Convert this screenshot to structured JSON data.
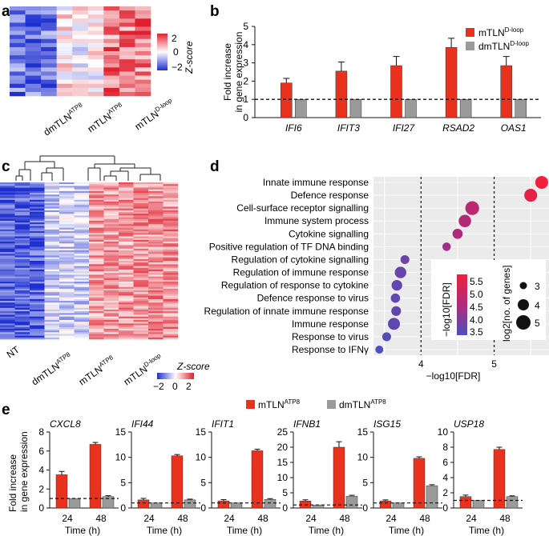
{
  "colors": {
    "mtln_atp8": "#e8321e",
    "dmtln_atp8": "#9a9a9a",
    "mtln_dloop": "#e8321e",
    "dmtln_dloop": "#9a9a9a",
    "z_low": "#1e2fd0",
    "z_mid": "#ffffff",
    "z_high": "#e0202e",
    "fdr_low": "#4b4fbe",
    "fdr_high": "#f0203c",
    "panel_d_bg": "#ebebeb"
  },
  "panels": {
    "a": {
      "label": "a",
      "colorbar": {
        "title": "Z-score",
        "ticks": [
          "2",
          "0",
          "−2"
        ]
      },
      "columns": [
        {
          "base": "dmTLN",
          "sup": "ATP8"
        },
        {
          "base": "mTLN",
          "sup": "ATP8"
        },
        {
          "base": "mTLN",
          "sup": "D-loop"
        }
      ]
    },
    "b": {
      "label": "b"
    },
    "c": {
      "label": "c",
      "columns": [
        {
          "base": "NT",
          "sup": ""
        },
        {
          "base": "dmTLN",
          "sup": "ATP8"
        },
        {
          "base": "mTLN",
          "sup": "ATP8"
        },
        {
          "base": "mTLN",
          "sup": "D-loop"
        }
      ],
      "colorbar": {
        "title": "Z-score",
        "ticks": [
          "−2",
          "0",
          "2"
        ]
      }
    },
    "d": {
      "label": "d"
    },
    "e": {
      "label": "e"
    }
  },
  "chart_data": [
    {
      "id": "b",
      "type": "bar",
      "ylabel_lines": [
        "Fold increase",
        "in gene expression"
      ],
      "ylim": [
        0,
        5
      ],
      "yticks": [
        "0",
        "1",
        "2",
        "3",
        "4",
        "5"
      ],
      "categories": [
        "IFI6",
        "IFIT3",
        "IFI27",
        "RSAD2",
        "OAS1"
      ],
      "reference_line": 1,
      "legend": {
        "position": "top-right"
      },
      "series": [
        {
          "name": "mTLN",
          "name_sup": "D-loop",
          "color": "#e8321e",
          "values": [
            1.9,
            2.55,
            2.85,
            3.85,
            2.85
          ],
          "errors": [
            0.25,
            0.5,
            0.5,
            0.5,
            0.5
          ]
        },
        {
          "name": "dmTLN",
          "name_sup": "D-loop",
          "color": "#9a9a9a",
          "values": [
            1.0,
            1.0,
            1.0,
            1.0,
            1.0
          ],
          "errors": [
            0,
            0,
            0,
            0,
            0
          ]
        }
      ]
    },
    {
      "id": "d",
      "type": "scatter",
      "xlabel": "−log10[FDR]",
      "xticks": [
        "4",
        "5"
      ],
      "xlim": [
        3.35,
        5.75
      ],
      "grid": true,
      "terms": [
        "Innate immune response",
        "Defence response",
        "Cell-surface receptor signalling",
        "Immune system process",
        "Cytokine signalling",
        "Positive regulation of TF DNA binding",
        "Regulation of cytokine signalling",
        "Regulation of immune response",
        "Regulation of response to cytokine",
        "Defence response to virus",
        "Regulation of innate immune response",
        "Immune response",
        "Response to virus",
        "Response to IFNγ"
      ],
      "neg_log10_fdr": [
        5.65,
        5.5,
        4.7,
        4.6,
        4.5,
        4.35,
        3.78,
        3.72,
        3.67,
        3.65,
        3.66,
        3.63,
        3.53,
        3.43
      ],
      "log2_genes": [
        4.8,
        4.8,
        5.0,
        4.7,
        4.2,
        3.8,
        3.9,
        4.5,
        4.3,
        4.0,
        4.1,
        4.6,
        3.9,
        3.7
      ],
      "color_legend": {
        "title": "−log10[FDR]",
        "ticks": [
          "5.5",
          "5.0",
          "4.5",
          "4.0",
          "3.5"
        ]
      },
      "size_legend": {
        "title": "log2[no. of genes]",
        "ticks": [
          "3",
          "4",
          "5"
        ]
      }
    },
    {
      "id": "e",
      "type": "bar",
      "xlabel": "Time (h)",
      "ylabel_lines": [
        "Fold increase",
        "in gene expression"
      ],
      "categories": [
        "24",
        "48"
      ],
      "reference_line": 1,
      "legend": {
        "position": "top-center"
      },
      "series_names": [
        {
          "name": "mTLN",
          "name_sup": "ATP8",
          "color": "#e8321e"
        },
        {
          "name": "dmTLN",
          "name_sup": "ATP8",
          "color": "#9a9a9a"
        }
      ],
      "subplots": [
        {
          "gene": "CXCL8",
          "ylim": [
            0,
            8
          ],
          "yticks": [
            "0",
            "2",
            "4",
            "6",
            "8"
          ],
          "mTLN": [
            3.5,
            6.7
          ],
          "mTLN_err": [
            0.35,
            0.2
          ],
          "dmTLN": [
            1.0,
            1.2
          ],
          "dmTLN_err": [
            0,
            0.1
          ]
        },
        {
          "gene": "IFI44",
          "ylim": [
            0,
            15
          ],
          "yticks": [
            "0",
            "5",
            "10",
            "15"
          ],
          "mTLN": [
            1.6,
            10.3
          ],
          "mTLN_err": [
            0.3,
            0.25
          ],
          "dmTLN": [
            1.0,
            1.6
          ],
          "dmTLN_err": [
            0,
            0.15
          ]
        },
        {
          "gene": "IFIT1",
          "ylim": [
            0,
            15
          ],
          "yticks": [
            "0",
            "5",
            "10",
            "15"
          ],
          "mTLN": [
            1.4,
            11.3
          ],
          "mTLN_err": [
            0.25,
            0.3
          ],
          "dmTLN": [
            1.0,
            1.7
          ],
          "dmTLN_err": [
            0,
            0.15
          ]
        },
        {
          "gene": "IFNB1",
          "ylim": [
            0,
            25
          ],
          "yticks": [
            "0",
            "5",
            "10",
            "15",
            "20",
            "25"
          ],
          "mTLN": [
            2.3,
            20.0
          ],
          "mTLN_err": [
            0.4,
            1.8
          ],
          "dmTLN": [
            1.0,
            3.9
          ],
          "dmTLN_err": [
            0,
            0.3
          ]
        },
        {
          "gene": "ISG15",
          "ylim": [
            0,
            15
          ],
          "yticks": [
            "0",
            "5",
            "10",
            "15"
          ],
          "mTLN": [
            1.4,
            9.8
          ],
          "mTLN_err": [
            0.2,
            0.3
          ],
          "dmTLN": [
            1.0,
            4.4
          ],
          "dmTLN_err": [
            0,
            0.2
          ]
        },
        {
          "gene": "USP18",
          "ylim": [
            0,
            10
          ],
          "yticks": [
            "0",
            "2",
            "4",
            "6",
            "8",
            "10"
          ],
          "mTLN": [
            1.5,
            7.7
          ],
          "mTLN_err": [
            0.2,
            0.3
          ],
          "dmTLN": [
            1.0,
            1.5
          ],
          "dmTLN_err": [
            0,
            0.1
          ]
        }
      ]
    }
  ]
}
